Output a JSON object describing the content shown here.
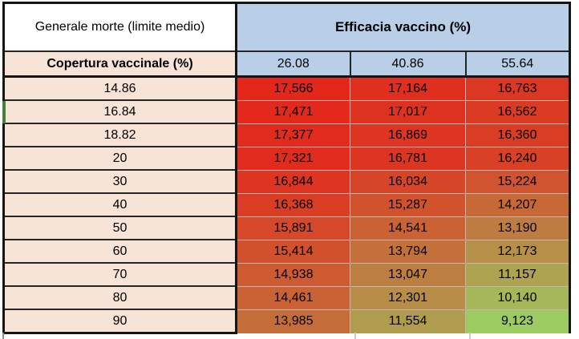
{
  "table": {
    "corner_header": "Generale morte (limite medio)",
    "group_header": "Efficacia vaccino (%)",
    "row_header": "Copertura vaccinale (%)"
  },
  "colors": {
    "header_blue": "#B9CFE7",
    "header_peach": "#F8E3D7",
    "outer_border": "#151515",
    "inner_border": "#262626",
    "edge_marker_green": "#47813F",
    "heat_max_red": "#E3271B",
    "heat_min_green": "#9CCB62"
  },
  "chart_data": {
    "type": "heatmap",
    "title": "Efficacia vaccino (%)",
    "corner_label": "Generale morte (limite medio)",
    "row_axis_label": "Copertura vaccinale (%)",
    "col_axis_label": "Efficacia vaccino (%)",
    "columns": [
      "26.08",
      "40.86",
      "55.64"
    ],
    "rows": [
      "14.86",
      "16.84",
      "18.82",
      "20",
      "30",
      "40",
      "50",
      "60",
      "70",
      "80",
      "90"
    ],
    "values": [
      [
        17566,
        17164,
        16763
      ],
      [
        17471,
        17017,
        16562
      ],
      [
        17377,
        16869,
        16360
      ],
      [
        17321,
        16781,
        16240
      ],
      [
        16844,
        16034,
        15224
      ],
      [
        16368,
        15287,
        14207
      ],
      [
        15891,
        14541,
        13190
      ],
      [
        15414,
        13794,
        12173
      ],
      [
        14938,
        13047,
        11157
      ],
      [
        14461,
        12301,
        10140
      ],
      [
        13985,
        11554,
        9123
      ]
    ],
    "color_scale": {
      "min": 9123,
      "max": 17566,
      "min_color": "#9CCB62",
      "max_color": "#E3271B",
      "legend": "high values red, low values green"
    }
  }
}
